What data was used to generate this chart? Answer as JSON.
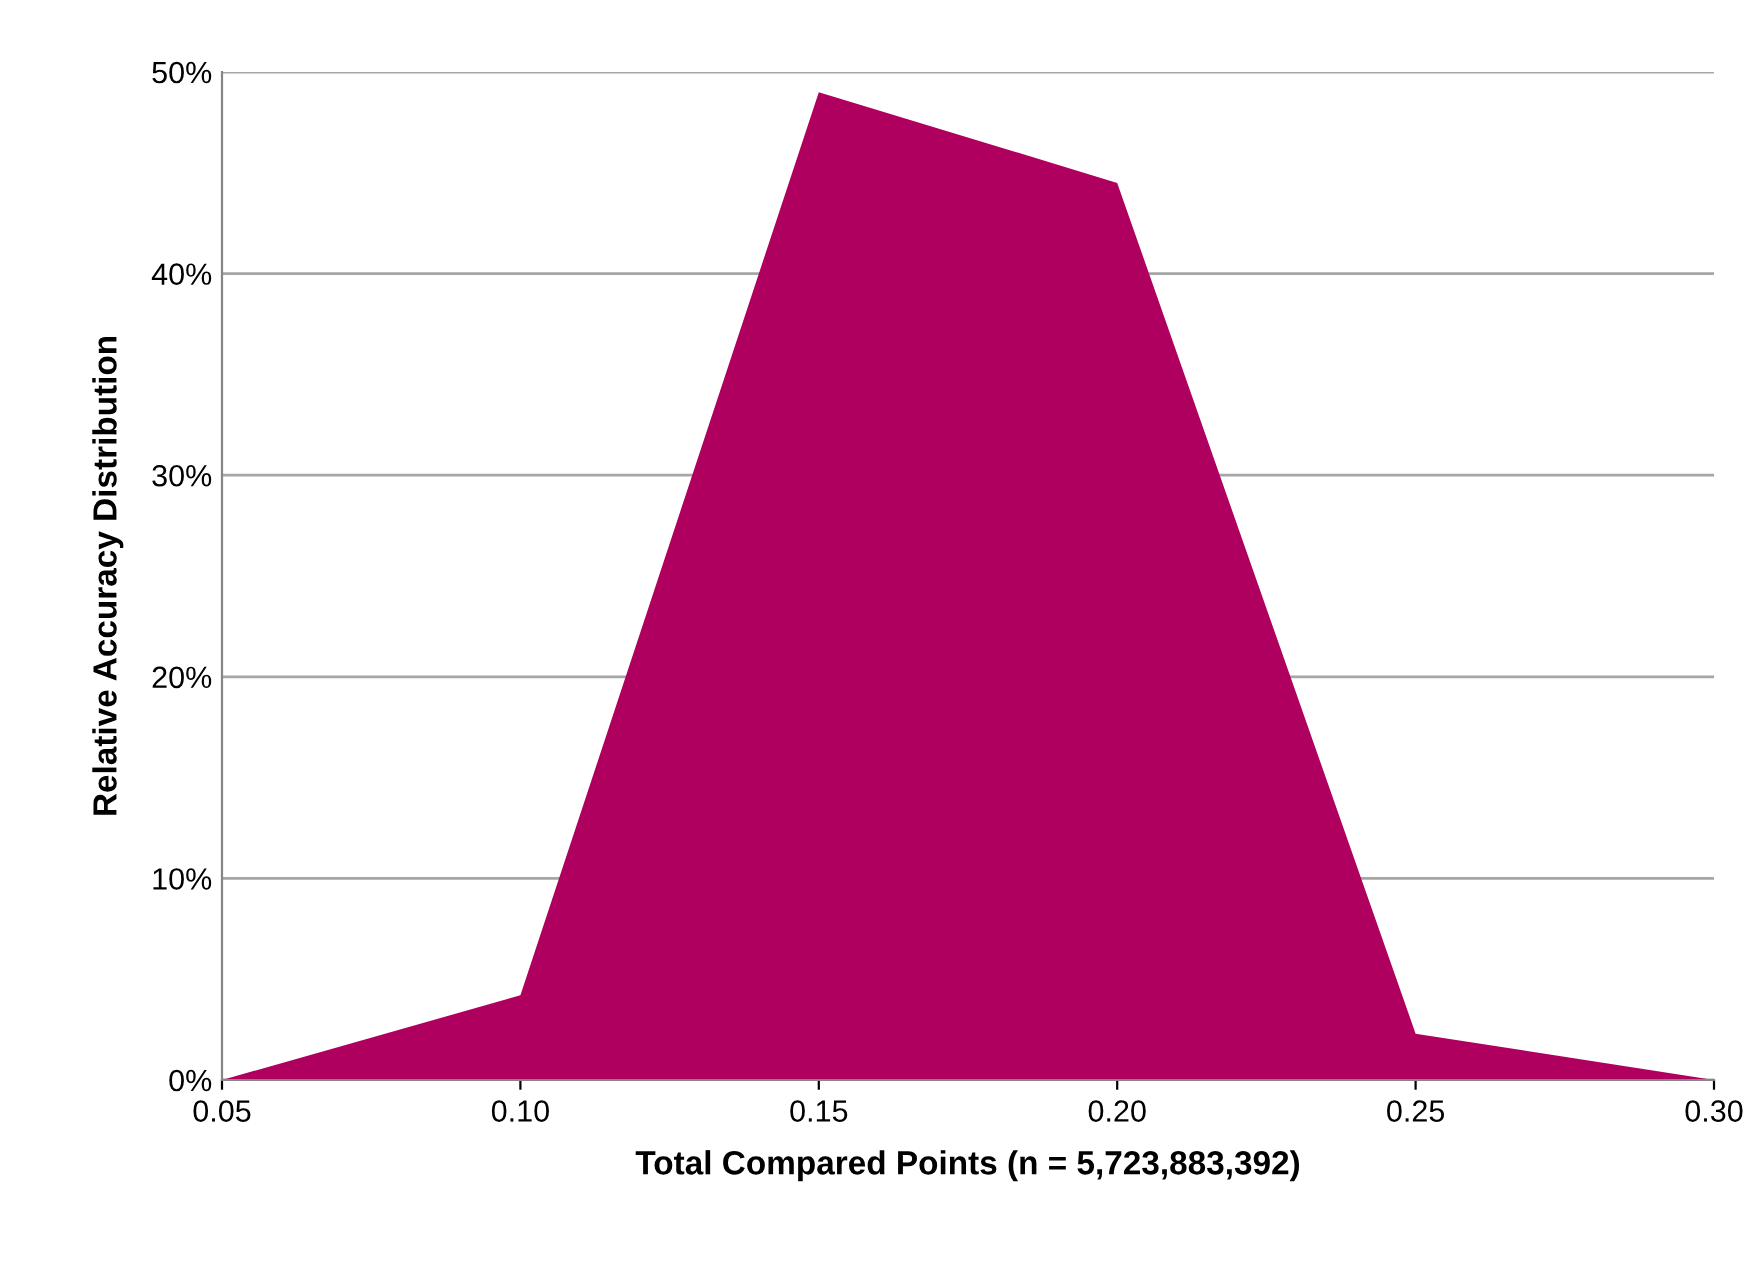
{
  "chart_data": {
    "type": "area",
    "xlabel": "Total Compared Points (n = 5,723,883,392)",
    "ylabel": "Relative Accuracy Distribution",
    "x": [
      0.05,
      0.1,
      0.15,
      0.2,
      0.25,
      0.3
    ],
    "series": [
      {
        "color": "#b0005f",
        "values": [
          0,
          4.2,
          49.0,
          44.5,
          2.3,
          0
        ]
      }
    ],
    "xlim": [
      0.05,
      0.3
    ],
    "xticks": [
      {
        "value": 0.05,
        "label": "0.05"
      },
      {
        "value": 0.1,
        "label": "0.10"
      },
      {
        "value": 0.15,
        "label": "0.15"
      },
      {
        "value": 0.2,
        "label": "0.20"
      },
      {
        "value": 0.25,
        "label": "0.25"
      },
      {
        "value": 0.3,
        "label": "0.30"
      }
    ],
    "ylim": [
      0,
      50
    ],
    "yticks": [
      {
        "value": 0,
        "label": "0%"
      },
      {
        "value": 10,
        "label": "10%"
      },
      {
        "value": 20,
        "label": "20%"
      },
      {
        "value": 30,
        "label": "30%"
      },
      {
        "value": 40,
        "label": "40%"
      },
      {
        "value": 50,
        "label": "50%"
      }
    ],
    "grid": "y"
  }
}
